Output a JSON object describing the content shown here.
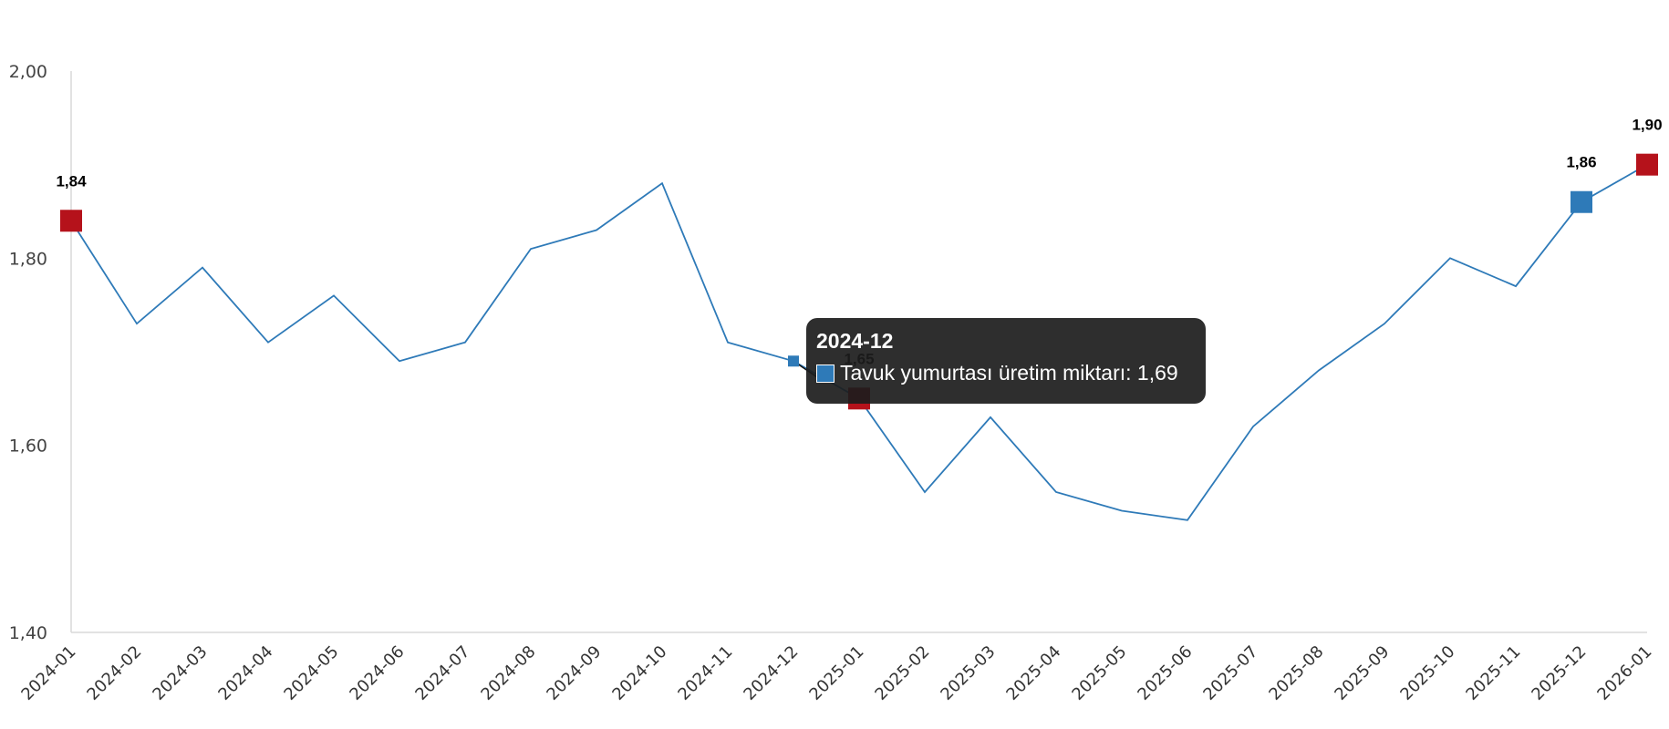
{
  "chart_data": {
    "type": "line",
    "title": "",
    "xlabel": "",
    "ylabel": "",
    "ylim": [
      1.4,
      2.0
    ],
    "yticks": [
      "1,40",
      "1,60",
      "1,80",
      "2,00"
    ],
    "ytick_values": [
      1.4,
      1.6,
      1.8,
      2.0
    ],
    "categories": [
      "2024-01",
      "2024-02",
      "2024-03",
      "2024-04",
      "2024-05",
      "2024-06",
      "2024-07",
      "2024-08",
      "2024-09",
      "2024-10",
      "2024-11",
      "2024-12",
      "2025-01",
      "2025-02",
      "2025-03",
      "2025-04",
      "2025-05",
      "2025-06",
      "2025-07",
      "2025-08",
      "2025-09",
      "2025-10",
      "2025-11",
      "2025-12",
      "2026-01"
    ],
    "series": [
      {
        "name": "Tavuk yumurtası üretim miktarı",
        "color": "#2e7ab8",
        "values": [
          1.84,
          1.73,
          1.79,
          1.71,
          1.76,
          1.69,
          1.71,
          1.81,
          1.83,
          1.88,
          1.71,
          1.69,
          1.65,
          1.55,
          1.63,
          1.55,
          1.53,
          1.52,
          1.62,
          1.68,
          1.73,
          1.8,
          1.77,
          1.86,
          1.9
        ]
      }
    ],
    "highlighted_points": [
      {
        "category": "2024-01",
        "label": "1,84",
        "color": "#b5121b"
      },
      {
        "category": "2025-01",
        "label": "1,65",
        "color": "#b5121b"
      },
      {
        "category": "2025-12",
        "label": "1,86",
        "color": "#2e7ab8"
      },
      {
        "category": "2026-01",
        "label": "1,90",
        "color": "#b5121b"
      }
    ],
    "grid": false,
    "legend": "none"
  },
  "tooltip": {
    "title": "2024-12",
    "series_name": "Tavuk yumurtası üretim miktarı",
    "value_text": "1,69",
    "text": "Tavuk yumurtası üretim miktarı: 1,69",
    "swatch_color": "#2e7ab8",
    "category": "2024-12"
  }
}
